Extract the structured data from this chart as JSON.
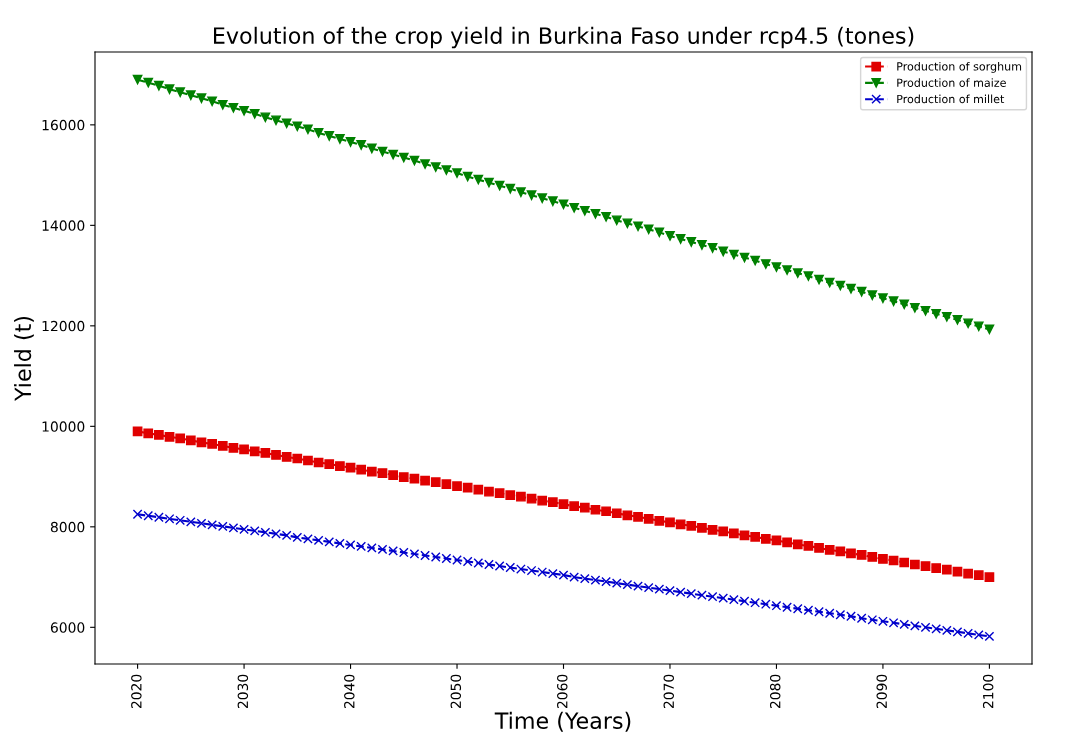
{
  "chart_data": {
    "type": "line",
    "title": "Evolution of the crop yield in Burkina Faso under rcp4.5 (tones)",
    "xlabel": "Time (Years)",
    "ylabel": "Yield (t)",
    "x": [
      2020,
      2021,
      2022,
      2023,
      2024,
      2025,
      2026,
      2027,
      2028,
      2029,
      2030,
      2031,
      2032,
      2033,
      2034,
      2035,
      2036,
      2037,
      2038,
      2039,
      2040,
      2041,
      2042,
      2043,
      2044,
      2045,
      2046,
      2047,
      2048,
      2049,
      2050,
      2051,
      2052,
      2053,
      2054,
      2055,
      2056,
      2057,
      2058,
      2059,
      2060,
      2061,
      2062,
      2063,
      2064,
      2065,
      2066,
      2067,
      2068,
      2069,
      2070,
      2071,
      2072,
      2073,
      2074,
      2075,
      2076,
      2077,
      2078,
      2079,
      2080,
      2081,
      2082,
      2083,
      2084,
      2085,
      2086,
      2087,
      2088,
      2089,
      2090,
      2091,
      2092,
      2093,
      2094,
      2095,
      2096,
      2097,
      2098,
      2099,
      2100
    ],
    "series": [
      {
        "name": "Production of sorghum",
        "color": "#e00000",
        "marker": "square",
        "values": [
          9900,
          9860,
          9830,
          9790,
          9760,
          9720,
          9680,
          9650,
          9610,
          9570,
          9540,
          9500,
          9470,
          9430,
          9390,
          9360,
          9320,
          9280,
          9250,
          9210,
          9180,
          9140,
          9100,
          9070,
          9030,
          8990,
          8960,
          8920,
          8890,
          8850,
          8810,
          8780,
          8740,
          8700,
          8670,
          8630,
          8600,
          8560,
          8520,
          8490,
          8450,
          8410,
          8380,
          8340,
          8310,
          8270,
          8230,
          8200,
          8160,
          8120,
          8090,
          8050,
          8020,
          7980,
          7940,
          7910,
          7870,
          7830,
          7800,
          7760,
          7730,
          7690,
          7650,
          7620,
          7580,
          7540,
          7510,
          7470,
          7440,
          7400,
          7360,
          7330,
          7290,
          7250,
          7220,
          7180,
          7150,
          7110,
          7070,
          7040,
          7000
        ]
      },
      {
        "name": "Production of maize",
        "color": "#008000",
        "marker": "triangle",
        "values": [
          16900,
          16840,
          16780,
          16710,
          16650,
          16590,
          16530,
          16470,
          16400,
          16340,
          16280,
          16220,
          16150,
          16090,
          16030,
          15970,
          15910,
          15840,
          15780,
          15720,
          15660,
          15600,
          15530,
          15470,
          15410,
          15350,
          15290,
          15220,
          15160,
          15100,
          15040,
          14970,
          14910,
          14850,
          14790,
          14730,
          14660,
          14600,
          14540,
          14480,
          14420,
          14350,
          14290,
          14230,
          14170,
          14100,
          14040,
          13980,
          13920,
          13860,
          13790,
          13730,
          13670,
          13610,
          13550,
          13480,
          13420,
          13360,
          13300,
          13230,
          13170,
          13110,
          13050,
          12990,
          12920,
          12860,
          12800,
          12740,
          12680,
          12610,
          12550,
          12490,
          12430,
          12360,
          12300,
          12240,
          12180,
          12120,
          12050,
          11990,
          11930
        ]
      },
      {
        "name": "Production of millet",
        "color": "#0000cc",
        "marker": "cross",
        "values": [
          8250,
          8220,
          8190,
          8160,
          8130,
          8100,
          8070,
          8040,
          8010,
          7980,
          7950,
          7920,
          7890,
          7860,
          7830,
          7790,
          7760,
          7730,
          7700,
          7670,
          7640,
          7610,
          7580,
          7550,
          7520,
          7490,
          7460,
          7430,
          7400,
          7370,
          7340,
          7310,
          7280,
          7250,
          7220,
          7190,
          7160,
          7130,
          7100,
          7070,
          7040,
          7000,
          6970,
          6940,
          6910,
          6880,
          6850,
          6820,
          6790,
          6760,
          6730,
          6700,
          6670,
          6640,
          6610,
          6580,
          6550,
          6520,
          6490,
          6460,
          6430,
          6400,
          6370,
          6340,
          6310,
          6280,
          6250,
          6220,
          6180,
          6150,
          6120,
          6090,
          6060,
          6030,
          6000,
          5970,
          5940,
          5910,
          5880,
          5850,
          5820
        ]
      }
    ],
    "xlim": [
      2016,
      2104
    ],
    "xticks": [
      2020,
      2030,
      2040,
      2050,
      2060,
      2070,
      2080,
      2090,
      2100
    ],
    "ylim": [
      5270,
      17450
    ],
    "yticks": [
      6000,
      8000,
      10000,
      12000,
      14000,
      16000
    ],
    "line_style": "dashed",
    "grid": false,
    "legend": "top right"
  }
}
